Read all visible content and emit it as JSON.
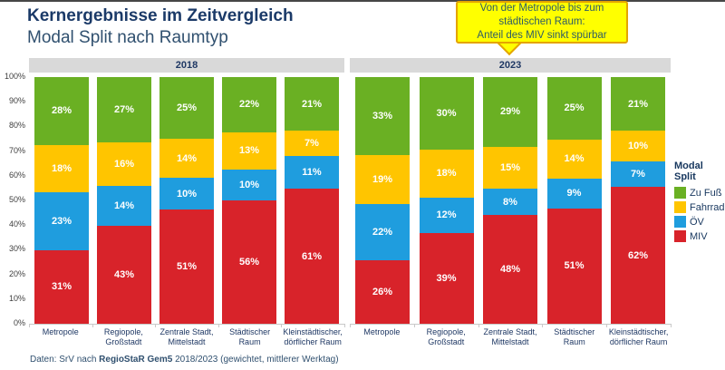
{
  "header": {
    "title": "Kernergebnisse im Zeitvergleich",
    "subtitle": "Modal Split nach Raumtyp"
  },
  "callout": {
    "lines": [
      "Von der Metropole bis zum",
      "städtischen Raum:",
      "Anteil des MIV sinkt spürbar"
    ]
  },
  "footer": {
    "prefix": "Daten: SrV nach ",
    "bold": "RegioStaR Gem5",
    "suffix": " 2018/2023 (gewichtet, mittlerer Werktag)"
  },
  "colors": {
    "title_navy": "#1b3a68",
    "subtitle_navy": "#30506f",
    "band_gray": "#d9d9d9",
    "callout_fill": "#ffff00",
    "callout_border": "#e4a400",
    "callout_text": "#2f5d66",
    "zu_fuss_green": "#6ab023",
    "fahrrad_yellow": "#ffc500",
    "oev_blue": "#1f9dde",
    "miv_red": "#d8232a"
  },
  "chart_data": {
    "type": "bar",
    "stacked": true,
    "value_unit": "%",
    "ylim": [
      0,
      100
    ],
    "y_tick_step": 10,
    "y_tick_labels": [
      "100%",
      "90%",
      "80%",
      "70%",
      "60%",
      "50%",
      "40%",
      "30%",
      "20%",
      "10%",
      "0%"
    ],
    "legend_title": "Modal Split",
    "legend_position": "right",
    "series": [
      {
        "name": "Zu Fuß",
        "color": "#6ab023"
      },
      {
        "name": "Fahrrad",
        "color": "#ffc500"
      },
      {
        "name": "ÖV",
        "color": "#1f9dde"
      },
      {
        "name": "MIV",
        "color": "#d8232a"
      }
    ],
    "groups": [
      {
        "label": "2018",
        "categories": [
          [
            "Metropole"
          ],
          [
            "Regiopole,",
            "Großstadt"
          ],
          [
            "Zentrale Stadt,",
            "Mittelstadt"
          ],
          [
            "Städtischer",
            "Raum"
          ],
          [
            "Kleinstädtischer,",
            "dörflicher Raum"
          ]
        ],
        "values": [
          [
            28,
            18,
            23,
            31
          ],
          [
            27,
            16,
            14,
            43
          ],
          [
            25,
            14,
            10,
            51
          ],
          [
            22,
            13,
            10,
            56
          ],
          [
            21,
            7,
            11,
            61
          ]
        ]
      },
      {
        "label": "2023",
        "categories": [
          [
            "Metropole"
          ],
          [
            "Regiopole,",
            "Großstadt"
          ],
          [
            "Zentrale Stadt,",
            "Mittelstadt"
          ],
          [
            "Städtischer",
            "Raum"
          ],
          [
            "Kleinstädtischer,",
            "dörflicher Raum"
          ]
        ],
        "values": [
          [
            33,
            19,
            22,
            26
          ],
          [
            30,
            18,
            12,
            39
          ],
          [
            29,
            15,
            8,
            48
          ],
          [
            25,
            14,
            9,
            51
          ],
          [
            21,
            10,
            7,
            62
          ]
        ]
      }
    ]
  }
}
